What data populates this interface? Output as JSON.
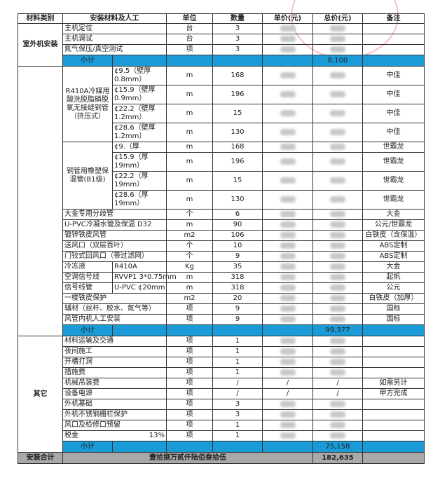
{
  "headers": [
    "材料类别",
    "安装材料及人工",
    "单位",
    "数量",
    "单价(元)",
    "总价(元)",
    "备注"
  ],
  "colors": {
    "subtotal_bg": "#1a9ad6",
    "total_bg": "#a9a9a9",
    "stamp": "#dc5064"
  },
  "sections": [
    {
      "category": "室外机安装",
      "rows": [
        {
          "item": "主机定位",
          "unit": "台",
          "qty": "3",
          "note": ""
        },
        {
          "item": "主机调试",
          "unit": "台",
          "qty": "3",
          "note": ""
        },
        {
          "item": "氮气保压/真空测试",
          "unit": "项",
          "qty": "3",
          "note": ""
        }
      ],
      "subtotal_label": "小计",
      "subtotal": "8,100"
    },
    {
      "category": "",
      "groups": [
        {
          "label": "R410A冷媒用酸洗脱脂磷脱氧无接缝铜管（挤压式）",
          "items": [
            {
              "spec": "¢9.5（壁厚0.8mm）",
              "unit": "m",
              "qty": "168",
              "note": "中佳"
            },
            {
              "spec": "¢15.9（壁厚0.9mm）",
              "unit": "m",
              "qty": "196",
              "note": "中佳"
            },
            {
              "spec": "¢22.2（壁厚1.2mm）",
              "unit": "m",
              "qty": "15",
              "note": "中佳"
            },
            {
              "spec": "¢28.6（壁厚1.2mm）",
              "unit": "m",
              "qty": "130",
              "note": "中佳"
            }
          ]
        },
        {
          "label": "铜管用橡塑保温管(B1级)",
          "items": [
            {
              "spec": "¢9.（厚",
              "unit": "m",
              "qty": "168",
              "note": "世霸龙"
            },
            {
              "spec": "¢15.9（厚19mm）",
              "unit": "m",
              "qty": "196",
              "note": "世霸龙"
            },
            {
              "spec": "¢22.2（厚19mm）",
              "unit": "m",
              "qty": "15",
              "note": "世霸龙"
            },
            {
              "spec": "¢28.6（厚19mm）",
              "unit": "m",
              "qty": "130",
              "note": "世霸龙"
            }
          ]
        }
      ],
      "rows": [
        {
          "item": "大金专用分歧管",
          "unit": "个",
          "qty": "6",
          "note": "大金"
        },
        {
          "item": "U-PVC冷凝水管及保温  D32",
          "unit": "m",
          "qty": "90",
          "note": "公元/世霸龙"
        },
        {
          "item": "镀锌铁皮风管",
          "unit": "m2",
          "qty": "106",
          "note": "白铁皮（含保温）"
        },
        {
          "item": "送风口（双层百叶）",
          "unit": "个",
          "qty": "10",
          "note": "ABS定制"
        },
        {
          "item": "门铰式回风口（带过滤网）",
          "unit": "个",
          "qty": "9",
          "note": "ABS定制"
        },
        {
          "item": "冷冻液",
          "spec": "R410A",
          "unit": "Kg",
          "qty": "35",
          "note": "大金"
        },
        {
          "item": "空调信号线",
          "spec": "RVVP1 3*0.75mm",
          "unit": "m",
          "qty": "318",
          "note": "起帆"
        },
        {
          "item": "信号线管",
          "spec": "U-PVC ¢20mm",
          "unit": "m",
          "qty": "318",
          "note": "公元"
        },
        {
          "item": "一楼铁皮保护",
          "unit": "m2",
          "qty": "20",
          "note": "白铁皮（加厚）"
        },
        {
          "item": "辅材（丝杆、胶水、氮气等）",
          "unit": "项",
          "qty": "9",
          "note": "国标"
        },
        {
          "item": "风管内机人工安装",
          "unit": "项",
          "qty": "9",
          "note": "国标"
        }
      ],
      "subtotal_label": "小计",
      "subtotal": "99,377"
    },
    {
      "category": "其它",
      "rows": [
        {
          "item": "材料运输及交通",
          "unit": "项",
          "qty": "1",
          "note": ""
        },
        {
          "item": "夜间施工",
          "unit": "项",
          "qty": "1",
          "note": ""
        },
        {
          "item": "开槽打洞",
          "unit": "项",
          "qty": "1",
          "note": ""
        },
        {
          "item": "措施费",
          "unit": "项",
          "qty": "1",
          "note": ""
        },
        {
          "item": "机械吊装费",
          "unit": "项",
          "qty": "/",
          "price": "/",
          "total": "/",
          "note": "如需另计"
        },
        {
          "item": "设备电源",
          "unit": "项",
          "qty": "/",
          "price": "/",
          "total": "/",
          "note": "甲方完成"
        },
        {
          "item": "外机基础",
          "unit": "项",
          "qty": "3",
          "note": ""
        },
        {
          "item": "外机不锈钢栅栏保护",
          "unit": "项",
          "qty": "3",
          "note": ""
        },
        {
          "item": "风口及检修口预留",
          "unit": "项",
          "qty": "1",
          "note": ""
        },
        {
          "item": "税金",
          "rate": "13%",
          "unit": "项",
          "qty": "1",
          "note": ""
        }
      ],
      "subtotal_label": "小计",
      "subtotal": "75,158"
    }
  ],
  "grand_total": {
    "label": "安装合计",
    "amount_words": "壹拾捌万贰仟陆佰叁拾伍",
    "amount": "182,635"
  }
}
